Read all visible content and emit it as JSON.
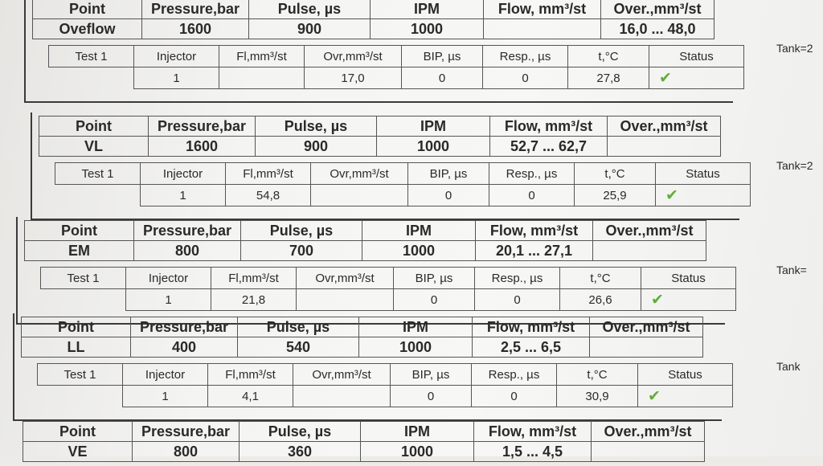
{
  "headers": {
    "point": "Point",
    "pressure": "Pressure,bar",
    "pulse": "Pulse, µs",
    "ipm": "IPM",
    "flow": "Flow, mm³/st",
    "over": "Over.,mm³/st"
  },
  "test_headers": {
    "injector": "Injector",
    "fl": "Fl,mm³/st",
    "ovr": "Ovr,mm³/st",
    "bip": "BIP, µs",
    "resp": "Resp., µs",
    "temp": "t,°C",
    "status": "Status"
  },
  "status_icon": "checkmark-icon",
  "status_color": "#5fae3a",
  "blocks": [
    {
      "point": "Oveflow",
      "pressure": "1600",
      "pulse": "900",
      "ipm": "1000",
      "flow": "",
      "over": "16,0 ... 48,0",
      "test": {
        "label": "Test 1",
        "injector": "1",
        "fl": "",
        "ovr": "17,0",
        "bip": "0",
        "resp": "0",
        "temp": "27,8",
        "status": "ok"
      },
      "tank": "Tank=2"
    },
    {
      "point": "VL",
      "pressure": "1600",
      "pulse": "900",
      "ipm": "1000",
      "flow": "52,7 ... 62,7",
      "over": "",
      "test": {
        "label": "Test 1",
        "injector": "1",
        "fl": "54,8",
        "ovr": "",
        "bip": "0",
        "resp": "0",
        "temp": "25,9",
        "status": "ok"
      },
      "tank": "Tank=2"
    },
    {
      "point": "EM",
      "pressure": "800",
      "pulse": "700",
      "ipm": "1000",
      "flow": "20,1 ... 27,1",
      "over": "",
      "test": {
        "label": "Test 1",
        "injector": "1",
        "fl": "21,8",
        "ovr": "",
        "bip": "0",
        "resp": "0",
        "temp": "26,6",
        "status": "ok"
      },
      "tank": "Tank="
    },
    {
      "point": "LL",
      "pressure": "400",
      "pulse": "540",
      "ipm": "1000",
      "flow": "2,5 ... 6,5",
      "over": "",
      "test": {
        "label": "Test 1",
        "injector": "1",
        "fl": "4,1",
        "ovr": "",
        "bip": "0",
        "resp": "0",
        "temp": "30,9",
        "status": "ok"
      },
      "tank": "Tank"
    },
    {
      "point": "VE",
      "pressure": "800",
      "pulse": "360",
      "ipm": "1000",
      "flow": "1,5 ... 4,5",
      "over": ""
    }
  ]
}
